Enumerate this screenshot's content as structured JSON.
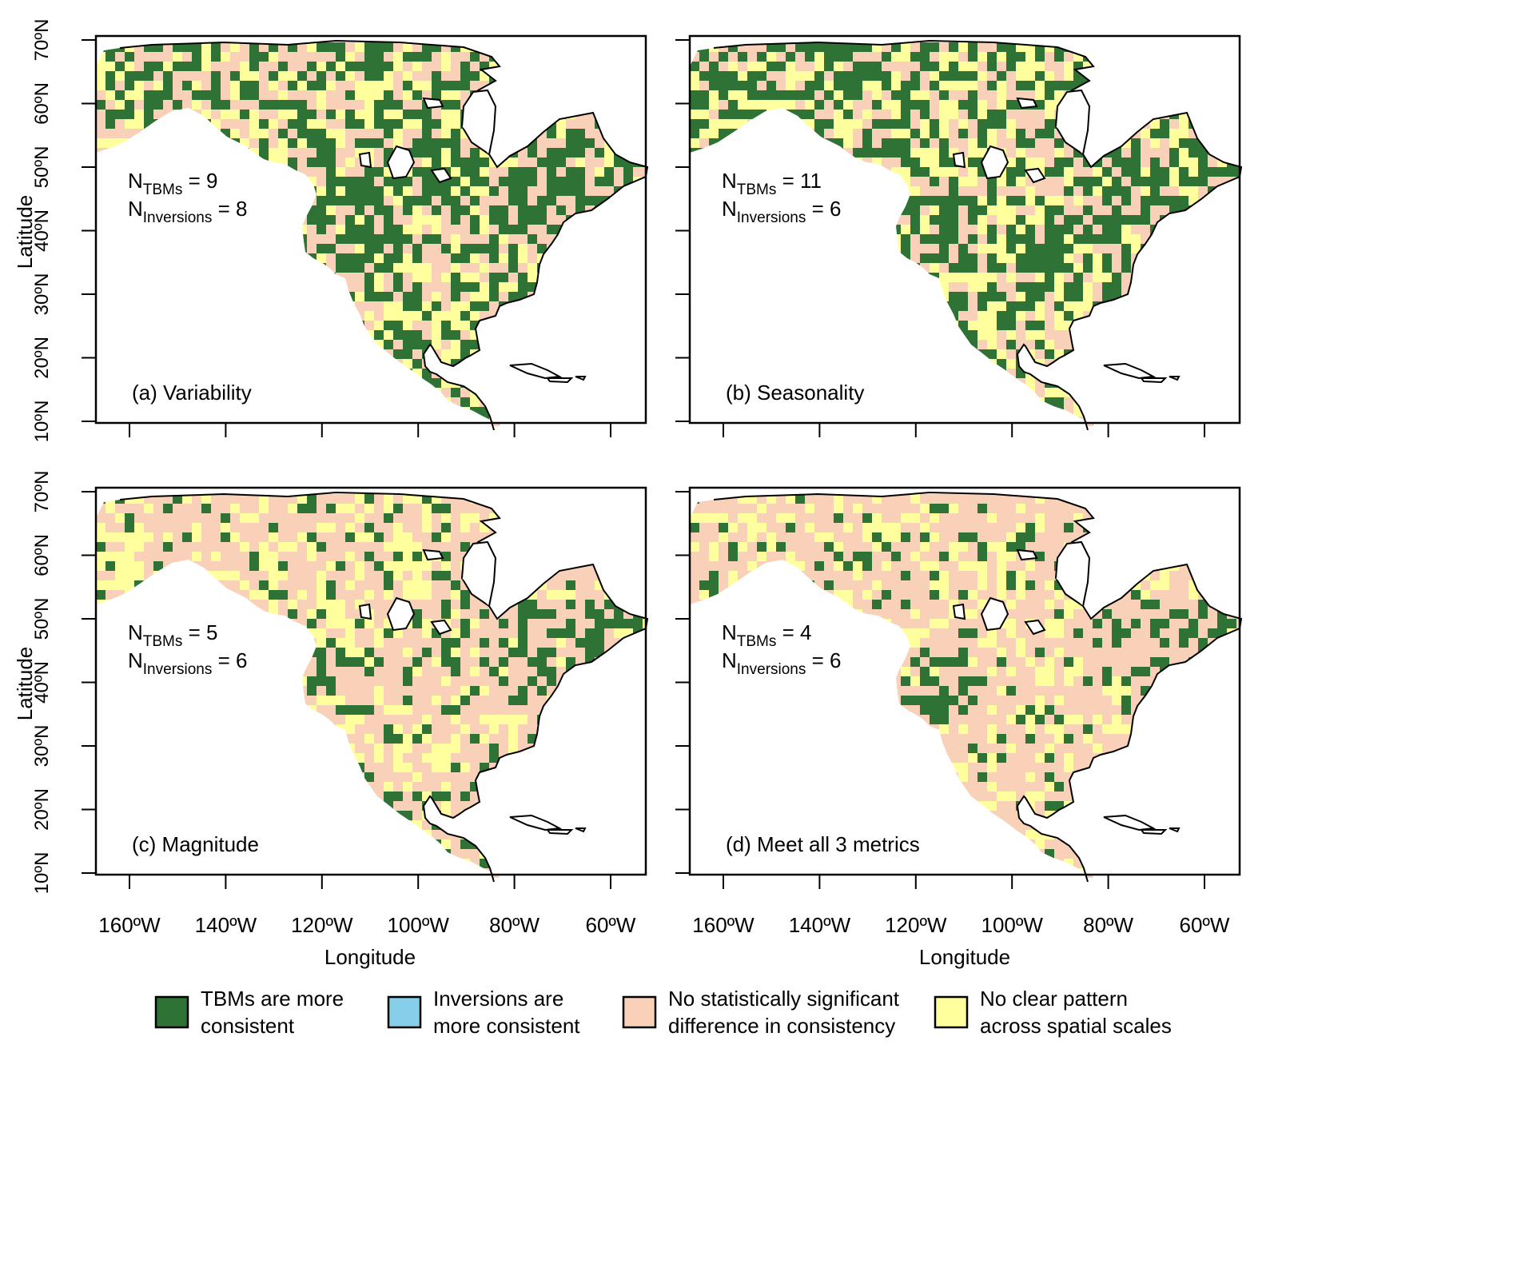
{
  "panels": [
    {
      "label": "(a) Variability",
      "n_tbms": "9",
      "n_inversions": "8"
    },
    {
      "label": "(b) Seasonality",
      "n_tbms": "11",
      "n_inversions": "6"
    },
    {
      "label": "(c) Magnitude",
      "n_tbms": "5",
      "n_inversions": "6"
    },
    {
      "label": "(d) Meet all 3 metrics",
      "n_tbms": "4",
      "n_inversions": "6"
    }
  ],
  "n_prefix": "N",
  "tbms_subscript": "TBMs",
  "inversions_subscript": "Inversions",
  "x_axis": {
    "label": "Longitude",
    "ticks": [
      "160ºW",
      "140ºW",
      "120ºW",
      "100ºW",
      "80ºW",
      "60ºW"
    ],
    "tick_values": [
      -160,
      -140,
      -120,
      -100,
      -80,
      -60
    ]
  },
  "y_axis": {
    "label": "Latitude",
    "ticks": [
      "10ºN",
      "20ºN",
      "30ºN",
      "40ºN",
      "50ºN",
      "60ºN",
      "70ºN"
    ],
    "tick_values": [
      10,
      20,
      30,
      40,
      50,
      60,
      70
    ]
  },
  "legend": [
    {
      "line1": "TBMs are more",
      "line2": "consistent",
      "color": "#2e7335"
    },
    {
      "line1": "Inversions are",
      "line2": "more consistent",
      "color": "#87ceeb"
    },
    {
      "line1": "No statistically significant",
      "line2": "difference in consistency",
      "color": "#f8d1b8"
    },
    {
      "line1": "No clear pattern",
      "line2": "across spatial scales",
      "color": "#ffff9e"
    }
  ],
  "colors": {
    "tbms": "#2e7335",
    "inversions": "#87ceeb",
    "nosig": "#f8d1b8",
    "noclear": "#ffff9e",
    "water": "#ffffff"
  }
}
